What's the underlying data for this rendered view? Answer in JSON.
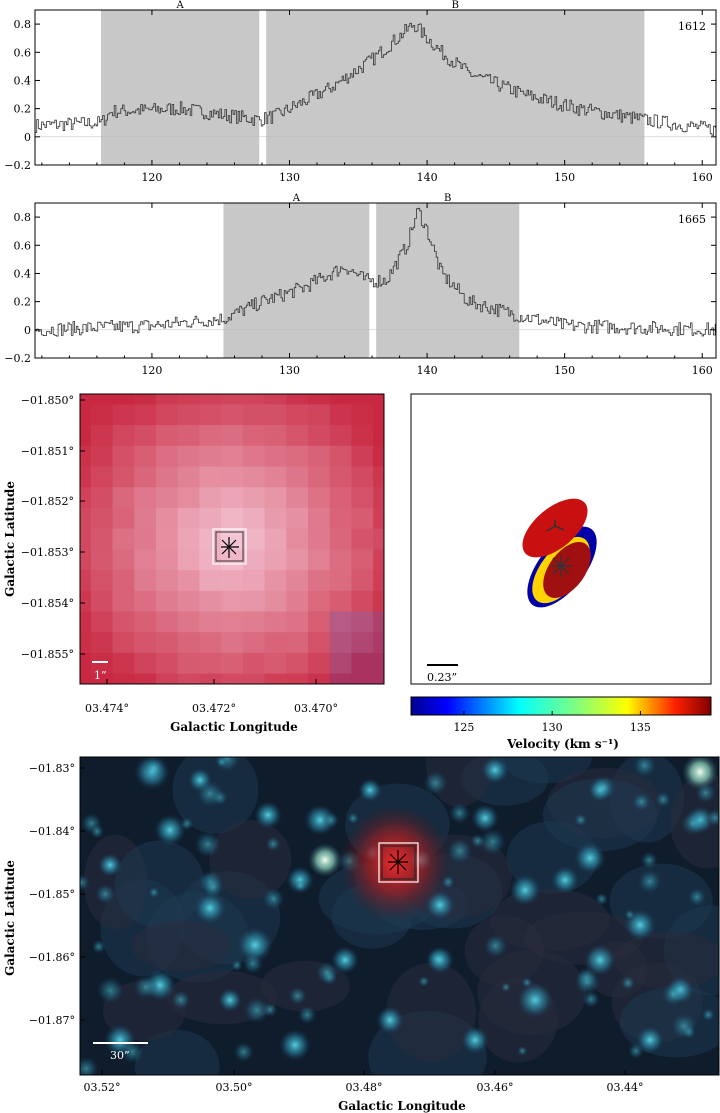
{
  "chart_data": [
    {
      "type": "line",
      "title": "",
      "label": "1612",
      "xlim": [
        111.5,
        161
      ],
      "ylim": [
        -0.2,
        0.9
      ],
      "xticks": [
        120,
        130,
        140,
        150,
        160
      ],
      "yticks": [
        -0.2,
        0,
        0.2,
        0.4,
        0.6,
        0.8
      ],
      "regions": [
        {
          "name": "A",
          "x0": 116.3,
          "x1": 127.8
        },
        {
          "name": "B",
          "x0": 128.3,
          "x1": 155.8
        }
      ],
      "profile": {
        "baseline": 0.05,
        "anchors": [
          [
            111.5,
            0.08
          ],
          [
            116.3,
            0.1
          ],
          [
            117,
            0.18
          ],
          [
            122,
            0.2
          ],
          [
            127.8,
            0.12
          ],
          [
            129,
            0.15
          ],
          [
            133,
            0.35
          ],
          [
            136,
            0.55
          ],
          [
            139,
            0.8
          ],
          [
            141,
            0.6
          ],
          [
            143,
            0.45
          ],
          [
            147,
            0.3
          ],
          [
            151,
            0.2
          ],
          [
            155.8,
            0.12
          ],
          [
            161,
            0.05
          ]
        ],
        "noise": 0.05
      }
    },
    {
      "type": "line",
      "title": "",
      "label": "1665",
      "xlim": [
        111.5,
        161
      ],
      "ylim": [
        -0.2,
        0.9
      ],
      "xticks": [
        120,
        130,
        140,
        150,
        160
      ],
      "yticks": [
        -0.2,
        0,
        0.2,
        0.4,
        0.6,
        0.8
      ],
      "regions": [
        {
          "name": "A",
          "x0": 125.2,
          "x1": 135.8
        },
        {
          "name": "B",
          "x0": 136.3,
          "x1": 146.7
        }
      ],
      "profile": {
        "baseline": 0.02,
        "anchors": [
          [
            111.5,
            0.0
          ],
          [
            120,
            0.03
          ],
          [
            125.2,
            0.08
          ],
          [
            128,
            0.2
          ],
          [
            131,
            0.3
          ],
          [
            134,
            0.45
          ],
          [
            135.5,
            0.35
          ],
          [
            137,
            0.35
          ],
          [
            138.5,
            0.6
          ],
          [
            139.3,
            0.85
          ],
          [
            140,
            0.7
          ],
          [
            141,
            0.4
          ],
          [
            143,
            0.2
          ],
          [
            146.7,
            0.1
          ],
          [
            150,
            0.03
          ],
          [
            161,
            0.0
          ]
        ],
        "noise": 0.05
      }
    },
    {
      "type": "heatmap",
      "xlabel": "Galactic Longitude",
      "ylabel": "Galactic Latitude",
      "xticks": [
        "03.474°",
        "03.472°",
        "03.470°"
      ],
      "yticks": [
        "−01.850°",
        "−01.851°",
        "−01.852°",
        "−01.853°",
        "−01.854°",
        "−01.855°"
      ],
      "scalebar": "1”"
    },
    {
      "type": "scatter",
      "scalebar": "0.23”",
      "colorbar": {
        "label": "Velocity (km s⁻¹)",
        "ticks": [
          "125",
          "130",
          "135"
        ],
        "range": [
          122,
          139
        ]
      }
    },
    {
      "type": "heatmap",
      "xlabel": "Galactic Longitude",
      "ylabel": "Galactic Latitude",
      "xticks": [
        "03.52°",
        "03.50°",
        "03.48°",
        "03.46°",
        "03.44°"
      ],
      "yticks": [
        "−01.83°",
        "−01.84°",
        "−01.85°",
        "−01.86°",
        "−01.87°"
      ],
      "scalebar": "30”"
    }
  ]
}
